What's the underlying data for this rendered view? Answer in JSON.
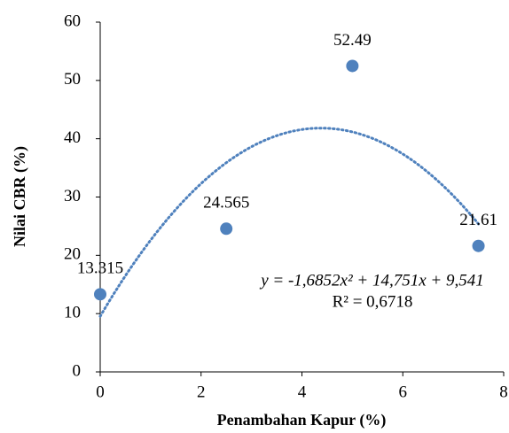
{
  "chart_data": {
    "type": "scatter",
    "x_label": "Penambahan Kapur (%)",
    "y_label": "Nilai CBR (%)",
    "series": [
      {
        "color": "#4f81bd",
        "x": [
          0,
          2.5,
          5,
          7.5
        ],
        "values": [
          13.315,
          24.565,
          52.49,
          21.61
        ]
      }
    ],
    "trendline": {
      "type": "polynomial",
      "color": "#4f81bd",
      "coefficients": [
        -1.6852,
        14.751,
        9.541
      ],
      "equation": "y = -1,6852x² + 14,751x + 9,541",
      "r_squared": "R² = 0,6718"
    },
    "xlim": [
      0,
      8
    ],
    "xticks": [
      0,
      2,
      4,
      6,
      8
    ],
    "ylim": [
      0,
      60
    ],
    "yticks": [
      0,
      10,
      20,
      30,
      40,
      50,
      60
    ],
    "grid": false
  }
}
